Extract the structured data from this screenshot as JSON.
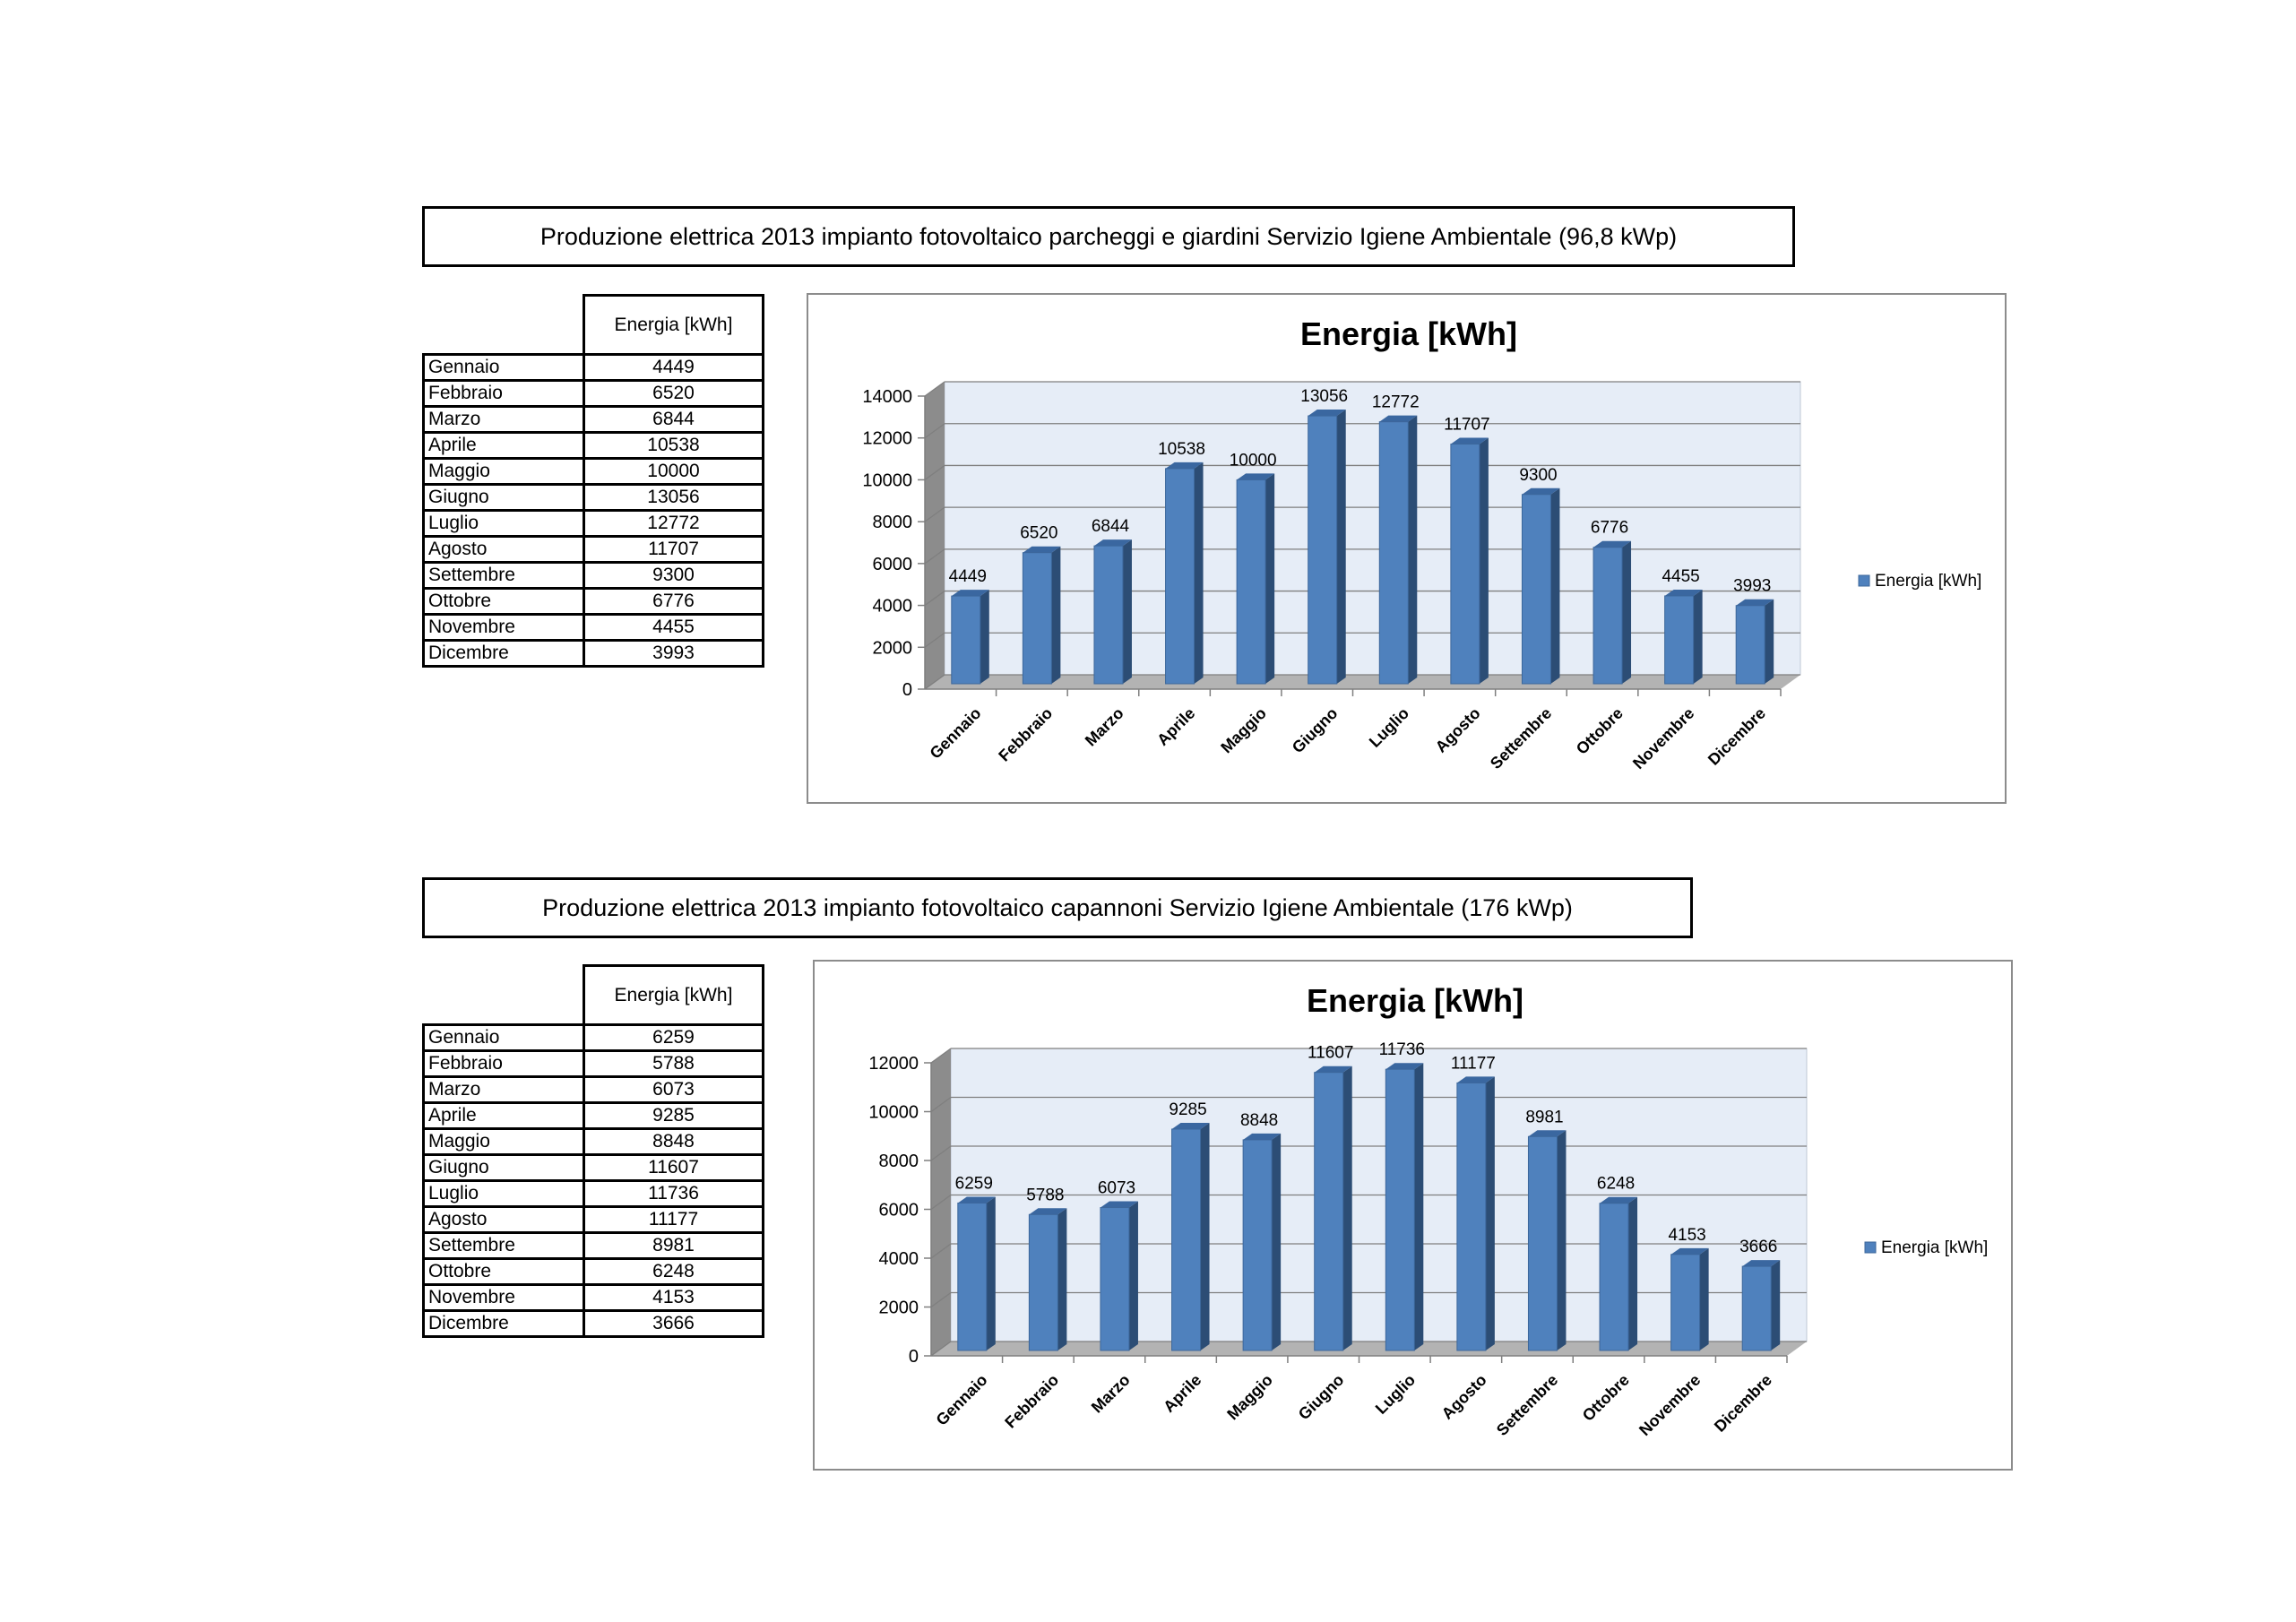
{
  "sections": [
    {
      "title": "Produzione elettrica 2013 impianto fotovoltaico parcheggi e giardini Servizio Igiene Ambientale (96,8 kWp)",
      "table": {
        "header": "Energia [kWh]",
        "rows": [
          {
            "month": "Gennaio",
            "value": "4449"
          },
          {
            "month": "Febbraio",
            "value": "6520"
          },
          {
            "month": "Marzo",
            "value": "6844"
          },
          {
            "month": "Aprile",
            "value": "10538"
          },
          {
            "month": "Maggio",
            "value": "10000"
          },
          {
            "month": "Giugno",
            "value": "13056"
          },
          {
            "month": "Luglio",
            "value": "12772"
          },
          {
            "month": "Agosto",
            "value": "11707"
          },
          {
            "month": "Settembre",
            "value": "9300"
          },
          {
            "month": "Ottobre",
            "value": "6776"
          },
          {
            "month": "Novembre",
            "value": "4455"
          },
          {
            "month": "Dicembre",
            "value": "3993"
          }
        ]
      }
    },
    {
      "title": "Produzione elettrica 2013 impianto fotovoltaico capannoni Servizio Igiene Ambientale (176 kWp)",
      "table": {
        "header": "Energia [kWh]",
        "rows": [
          {
            "month": "Gennaio",
            "value": "6259"
          },
          {
            "month": "Febbraio",
            "value": "5788"
          },
          {
            "month": "Marzo",
            "value": "6073"
          },
          {
            "month": "Aprile",
            "value": "9285"
          },
          {
            "month": "Maggio",
            "value": "8848"
          },
          {
            "month": "Giugno",
            "value": "11607"
          },
          {
            "month": "Luglio",
            "value": "11736"
          },
          {
            "month": "Agosto",
            "value": "11177"
          },
          {
            "month": "Settembre",
            "value": "8981"
          },
          {
            "month": "Ottobre",
            "value": "6248"
          },
          {
            "month": "Novembre",
            "value": "4153"
          },
          {
            "month": "Dicembre",
            "value": "3666"
          }
        ]
      }
    }
  ],
  "chart_data": [
    {
      "type": "bar",
      "title": "Energia [kWh]",
      "categories": [
        "Gennaio",
        "Febbraio",
        "Marzo",
        "Aprile",
        "Maggio",
        "Giugno",
        "Luglio",
        "Agosto",
        "Settembre",
        "Ottobre",
        "Novembre",
        "Dicembre"
      ],
      "series": [
        {
          "name": "Energia [kWh]",
          "values": [
            4449,
            6520,
            6844,
            10538,
            10000,
            13056,
            12772,
            11707,
            9300,
            6776,
            4455,
            3993
          ]
        }
      ],
      "ylim": [
        0,
        14000
      ],
      "yticks": [
        0,
        2000,
        4000,
        6000,
        8000,
        10000,
        12000,
        14000
      ],
      "grid": true,
      "legend": "right",
      "data_labels": true,
      "bar_color": "#4f81bd",
      "plot_bg": "#e6edf7"
    },
    {
      "type": "bar",
      "title": "Energia [kWh]",
      "categories": [
        "Gennaio",
        "Febbraio",
        "Marzo",
        "Aprile",
        "Maggio",
        "Giugno",
        "Luglio",
        "Agosto",
        "Settembre",
        "Ottobre",
        "Novembre",
        "Dicembre"
      ],
      "series": [
        {
          "name": "Energia [kWh]",
          "values": [
            6259,
            5788,
            6073,
            9285,
            8848,
            11607,
            11736,
            11177,
            8981,
            6248,
            4153,
            3666
          ]
        }
      ],
      "ylim": [
        0,
        12000
      ],
      "yticks": [
        0,
        2000,
        4000,
        6000,
        8000,
        10000,
        12000
      ],
      "grid": true,
      "legend": "right",
      "data_labels": true,
      "bar_color": "#4f81bd",
      "plot_bg": "#e6edf7"
    }
  ]
}
